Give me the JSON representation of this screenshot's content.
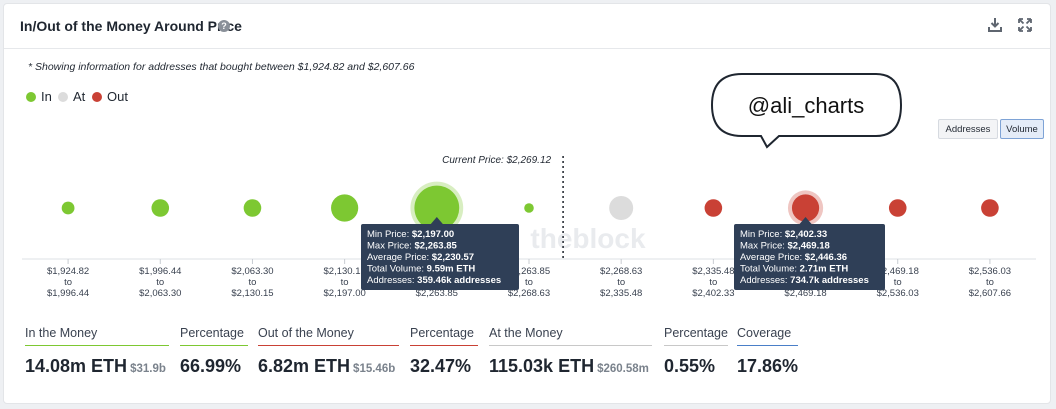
{
  "header": {
    "title": "In/Out of the Money Around Price",
    "help_icon": "help-icon",
    "download_icon": "download-icon",
    "expand_icon": "expand-icon"
  },
  "note": "* Showing information for addresses that bought between $1,924.82 and $2,607.66",
  "legend": [
    {
      "label": "In",
      "color": "#7dc832"
    },
    {
      "label": "At",
      "color": "#dcdcdc"
    },
    {
      "label": "Out",
      "color": "#c94135"
    }
  ],
  "toggle": {
    "addresses": "Addresses",
    "volume": "Volume",
    "selected": "Volume"
  },
  "speech_bubble": "@ali_charts",
  "watermark": "theblock",
  "chart_data": {
    "type": "bubble",
    "metric": "Volume",
    "current_price_label": "Current Price: $2,269.12",
    "current_price": 2269.12,
    "ranges": [
      {
        "from": "$1,924.82",
        "to": "$1,996.44",
        "status": "in",
        "rel_size": 0.4
      },
      {
        "from": "$1,996.44",
        "to": "$2,063.30",
        "status": "in",
        "rel_size": 0.55
      },
      {
        "from": "$2,063.30",
        "to": "$2,130.15",
        "status": "in",
        "rel_size": 0.55
      },
      {
        "from": "$2,130.15",
        "to": "$2,197.00",
        "status": "in",
        "rel_size": 0.85
      },
      {
        "from": "$2,197.00",
        "to": "$2,263.85",
        "status": "in",
        "rel_size": 1.4
      },
      {
        "from": "$2,263.85",
        "to": "$2,268.63",
        "status": "in",
        "rel_size": 0.3
      },
      {
        "from": "$2,268.63",
        "to": "$2,335.48",
        "status": "at",
        "rel_size": 0.75
      },
      {
        "from": "$2,335.48",
        "to": "$2,402.33",
        "status": "out",
        "rel_size": 0.55
      },
      {
        "from": "$2,402.33",
        "to": "$2,469.18",
        "status": "out",
        "rel_size": 0.85
      },
      {
        "from": "$2,469.18",
        "to": "$2,536.03",
        "status": "out",
        "rel_size": 0.55
      },
      {
        "from": "$2,536.03",
        "to": "$2,607.66",
        "status": "out",
        "rel_size": 0.55
      }
    ],
    "tooltips": [
      {
        "range_index": 4,
        "lines": [
          {
            "label": "Min Price:",
            "value": "$2,197.00"
          },
          {
            "label": "Max Price:",
            "value": "$2,263.85"
          },
          {
            "label": "Average Price:",
            "value": "$2,230.57"
          },
          {
            "label": "Total Volume:",
            "value": "9.59m ETH"
          },
          {
            "label": "Addresses:",
            "value": "359.46k addresses"
          }
        ]
      },
      {
        "range_index": 8,
        "lines": [
          {
            "label": "Min Price:",
            "value": "$2,402.33"
          },
          {
            "label": "Max Price:",
            "value": "$2,469.18"
          },
          {
            "label": "Average Price:",
            "value": "$2,446.36"
          },
          {
            "label": "Total Volume:",
            "value": "2.71m ETH"
          },
          {
            "label": "Addresses:",
            "value": "734.7k addresses"
          }
        ]
      }
    ]
  },
  "stats": [
    {
      "label": "In the Money",
      "value": "14.08m ETH",
      "sub": "$31.9b",
      "color": "#7dc832"
    },
    {
      "label": "Percentage",
      "value": "66.99%",
      "sub": "",
      "color": "#7dc832"
    },
    {
      "label": "Out of the Money",
      "value": "6.82m ETH",
      "sub": "$15.46b",
      "color": "#c94135"
    },
    {
      "label": "Percentage",
      "value": "32.47%",
      "sub": "",
      "color": "#c94135"
    },
    {
      "label": "At the Money",
      "value": "115.03k ETH",
      "sub": "$260.58m",
      "color": "#c8c8c8"
    },
    {
      "label": "Percentage",
      "value": "0.55%",
      "sub": "",
      "color": "#c8c8c8"
    },
    {
      "label": "Coverage",
      "value": "17.86%",
      "sub": "",
      "color": "#4a7fc8"
    }
  ]
}
